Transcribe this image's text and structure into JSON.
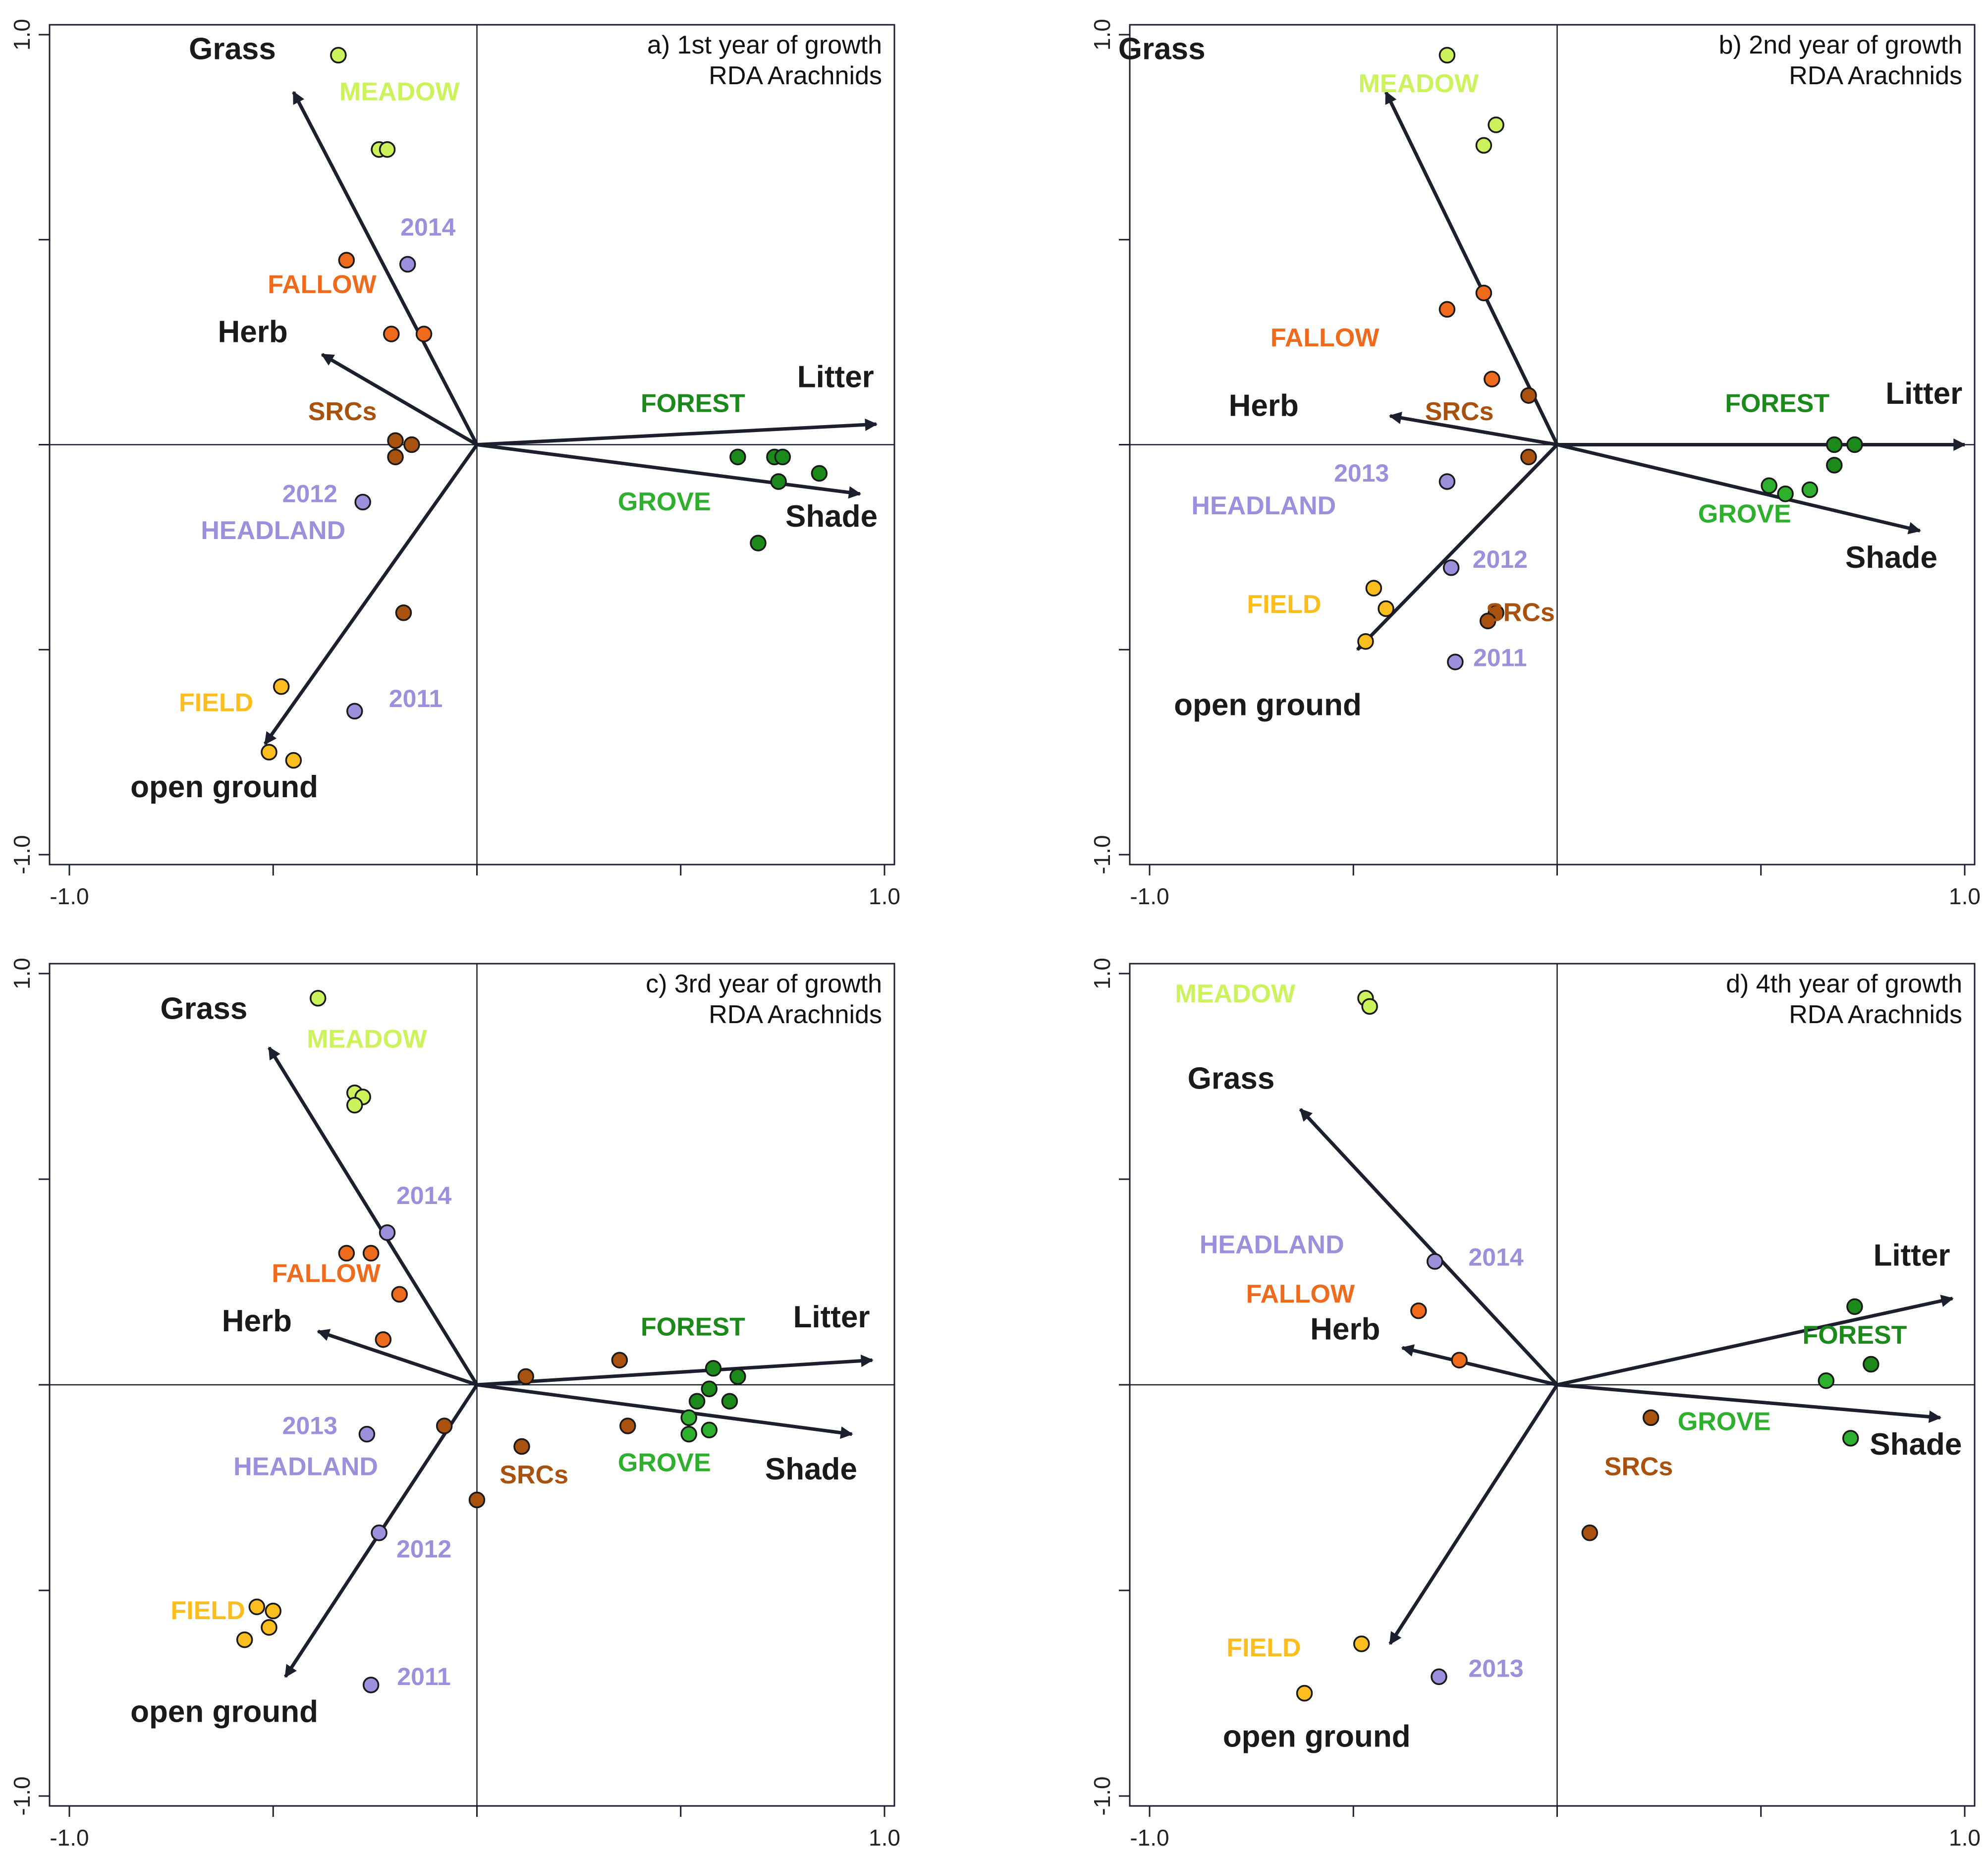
{
  "colors": {
    "meadow": "#ccf25c",
    "fallow": "#ee6a1c",
    "src": "#a9520f",
    "headland": "#9c8fdb",
    "field": "#fbbe1e",
    "forest": "#1b8a1b",
    "grove": "#2eb02e",
    "arrow": "#1c1f2e",
    "axis": "#1c1f2e"
  },
  "chart_data": [
    {
      "type": "scatter",
      "title": "a) 1st year of growth",
      "subtitle": "RDA Arachnids",
      "xlim": [
        -1.0,
        1.0
      ],
      "ylim": [
        -1.0,
        1.0
      ],
      "x_tick_labels": [
        "-1.0",
        "1.0"
      ],
      "y_tick_labels": [
        "1.0",
        "-1.0"
      ],
      "arrows": [
        {
          "name": "Grass",
          "x": -0.45,
          "y": 0.86,
          "lx": -0.6,
          "ly": 0.94
        },
        {
          "name": "Herb",
          "x": -0.38,
          "y": 0.22,
          "lx": -0.55,
          "ly": 0.25
        },
        {
          "name": "Litter",
          "x": 0.98,
          "y": 0.05,
          "lx": 0.88,
          "ly": 0.14
        },
        {
          "name": "Shade",
          "x": 0.94,
          "y": -0.12,
          "lx": 0.87,
          "ly": -0.2
        },
        {
          "name": "open ground",
          "x": -0.52,
          "y": -0.73,
          "lx": -0.62,
          "ly": -0.86
        }
      ],
      "series": [
        {
          "name": "MEADOW",
          "color_key": "meadow",
          "label_x": -0.19,
          "label_y": 0.84,
          "points": [
            [
              -0.34,
              0.95
            ],
            [
              -0.24,
              0.72
            ],
            [
              -0.22,
              0.72
            ]
          ]
        },
        {
          "name": "FALLOW",
          "color_key": "fallow",
          "label_x": -0.38,
          "label_y": 0.37,
          "points": [
            [
              -0.32,
              0.45
            ],
            [
              -0.21,
              0.27
            ],
            [
              -0.13,
              0.27
            ]
          ]
        },
        {
          "name": "SRCs",
          "color_key": "src",
          "label_x": -0.33,
          "label_y": 0.06,
          "points": [
            [
              -0.2,
              0.01
            ],
            [
              -0.2,
              -0.03
            ],
            [
              -0.16,
              0.0
            ]
          ]
        },
        {
          "name": "HEADLAND",
          "color_key": "headland",
          "label_x": -0.5,
          "label_y": -0.23,
          "points": [
            [
              -0.17,
              0.44
            ],
            [
              -0.28,
              -0.14
            ],
            [
              -0.3,
              -0.65
            ]
          ],
          "year_labels": [
            {
              "text": "2014",
              "x": -0.12,
              "y": 0.51
            },
            {
              "text": "2012",
              "x": -0.41,
              "y": -0.14
            },
            {
              "text": "2011",
              "x": -0.15,
              "y": -0.64
            }
          ]
        },
        {
          "name": "FIELD",
          "color_key": "field",
          "label_x": -0.64,
          "label_y": -0.65,
          "points": [
            [
              -0.48,
              -0.59
            ],
            [
              -0.51,
              -0.75
            ],
            [
              -0.45,
              -0.77
            ]
          ]
        },
        {
          "name": "SRCs",
          "color_key": "src",
          "show_label": false,
          "points": [
            [
              -0.18,
              -0.41
            ]
          ]
        },
        {
          "name": "FOREST",
          "color_key": "forest",
          "label_x": 0.53,
          "label_y": 0.08,
          "points": [
            [
              0.64,
              -0.03
            ],
            [
              0.73,
              -0.03
            ],
            [
              0.75,
              -0.03
            ],
            [
              0.74,
              -0.09
            ],
            [
              0.84,
              -0.07
            ],
            [
              0.69,
              -0.24
            ]
          ]
        },
        {
          "name": "GROVE",
          "color_key": "grove",
          "label_x": 0.46,
          "label_y": -0.16,
          "points": []
        }
      ]
    },
    {
      "type": "scatter",
      "title": "b) 2nd year of growth",
      "subtitle": "RDA Arachnids",
      "xlim": [
        -1.0,
        1.0
      ],
      "ylim": [
        -1.0,
        1.0
      ],
      "x_tick_labels": [
        "-1.0",
        "1.0"
      ],
      "y_tick_labels": [
        "1.0",
        "-1.0"
      ],
      "arrows": [
        {
          "name": "Grass",
          "x": -0.42,
          "y": 0.86,
          "lx": -0.97,
          "ly": 0.94
        },
        {
          "name": "Herb",
          "x": -0.41,
          "y": 0.07,
          "lx": -0.72,
          "ly": 0.07
        },
        {
          "name": "Litter",
          "x": 1.0,
          "y": 0.0,
          "lx": 0.9,
          "ly": 0.1
        },
        {
          "name": "Shade",
          "x": 0.89,
          "y": -0.21,
          "lx": 0.82,
          "ly": -0.3
        },
        {
          "name": "open ground",
          "x": -0.49,
          "y": -0.5,
          "lx": -0.71,
          "ly": -0.66
        }
      ],
      "series": [
        {
          "name": "MEADOW",
          "color_key": "meadow",
          "label_x": -0.34,
          "label_y": 0.86,
          "points": [
            [
              -0.27,
              0.95
            ],
            [
              -0.15,
              0.78
            ],
            [
              -0.18,
              0.73
            ]
          ]
        },
        {
          "name": "FALLOW",
          "color_key": "fallow",
          "label_x": -0.57,
          "label_y": 0.24,
          "points": [
            [
              -0.27,
              0.33
            ],
            [
              -0.18,
              0.37
            ],
            [
              -0.16,
              0.16
            ]
          ]
        },
        {
          "name": "SRCs",
          "color_key": "src",
          "label_x": -0.24,
          "label_y": 0.06,
          "points": [
            [
              -0.07,
              0.12
            ],
            [
              -0.07,
              -0.03
            ],
            [
              -0.15,
              -0.41
            ],
            [
              -0.17,
              -0.43
            ]
          ],
          "label_positions": [
            {
              "text": "SRCs",
              "x": -0.09,
              "y": -0.43
            }
          ]
        },
        {
          "name": "HEADLAND",
          "color_key": "headland",
          "label_x": -0.72,
          "label_y": -0.17,
          "points": [
            [
              -0.27,
              -0.09
            ],
            [
              -0.26,
              -0.3
            ],
            [
              -0.25,
              -0.53
            ]
          ],
          "year_labels": [
            {
              "text": "2013",
              "x": -0.48,
              "y": -0.09
            },
            {
              "text": "2012",
              "x": -0.14,
              "y": -0.3
            },
            {
              "text": "2011",
              "x": -0.14,
              "y": -0.54
            }
          ]
        },
        {
          "name": "FIELD",
          "color_key": "field",
          "label_x": -0.67,
          "label_y": -0.41,
          "points": [
            [
              -0.45,
              -0.35
            ],
            [
              -0.42,
              -0.4
            ],
            [
              -0.47,
              -0.48
            ]
          ]
        },
        {
          "name": "FOREST",
          "color_key": "forest",
          "label_x": 0.54,
          "label_y": 0.08,
          "points": [
            [
              0.68,
              0.0
            ],
            [
              0.73,
              0.0
            ],
            [
              0.68,
              -0.05
            ]
          ]
        },
        {
          "name": "GROVE",
          "color_key": "grove",
          "label_x": 0.46,
          "label_y": -0.19,
          "points": [
            [
              0.52,
              -0.1
            ],
            [
              0.56,
              -0.12
            ],
            [
              0.62,
              -0.11
            ]
          ]
        }
      ]
    },
    {
      "type": "scatter",
      "title": "c) 3rd year of growth",
      "subtitle": "RDA Arachnids",
      "xlim": [
        -1.0,
        1.0
      ],
      "ylim": [
        -1.0,
        1.0
      ],
      "x_tick_labels": [
        "-1.0",
        "1.0"
      ],
      "y_tick_labels": [
        "1.0",
        "-1.0"
      ],
      "arrows": [
        {
          "name": "Grass",
          "x": -0.51,
          "y": 0.82,
          "lx": -0.67,
          "ly": 0.89
        },
        {
          "name": "Herb",
          "x": -0.39,
          "y": 0.13,
          "lx": -0.54,
          "ly": 0.13
        },
        {
          "name": "Litter",
          "x": 0.97,
          "y": 0.06,
          "lx": 0.87,
          "ly": 0.14
        },
        {
          "name": "Shade",
          "x": 0.92,
          "y": -0.12,
          "lx": 0.82,
          "ly": -0.23
        },
        {
          "name": "open ground",
          "x": -0.47,
          "y": -0.71,
          "lx": -0.62,
          "ly": -0.82
        }
      ],
      "series": [
        {
          "name": "MEADOW",
          "color_key": "meadow",
          "label_x": -0.27,
          "label_y": 0.82,
          "points": [
            [
              -0.39,
              0.94
            ],
            [
              -0.3,
              0.71
            ],
            [
              -0.28,
              0.7
            ],
            [
              -0.3,
              0.68
            ]
          ]
        },
        {
          "name": "FALLOW",
          "color_key": "fallow",
          "label_x": -0.37,
          "label_y": 0.25,
          "points": [
            [
              -0.32,
              0.32
            ],
            [
              -0.26,
              0.32
            ],
            [
              -0.19,
              0.22
            ],
            [
              -0.23,
              0.11
            ]
          ]
        },
        {
          "name": "SRCs",
          "color_key": "src",
          "label_x": 0.14,
          "label_y": -0.24,
          "points": [
            [
              0.12,
              0.02
            ],
            [
              0.35,
              0.06
            ],
            [
              -0.08,
              -0.1
            ],
            [
              0.11,
              -0.15
            ],
            [
              0.37,
              -0.1
            ],
            [
              0.0,
              -0.28
            ]
          ]
        },
        {
          "name": "HEADLAND",
          "color_key": "headland",
          "label_x": -0.42,
          "label_y": -0.22,
          "points": [
            [
              -0.22,
              0.37
            ],
            [
              -0.27,
              -0.12
            ],
            [
              -0.24,
              -0.36
            ],
            [
              -0.26,
              -0.73
            ]
          ],
          "year_labels": [
            {
              "text": "2014",
              "x": -0.13,
              "y": 0.44
            },
            {
              "text": "2013",
              "x": -0.41,
              "y": -0.12
            },
            {
              "text": "2012",
              "x": -0.13,
              "y": -0.42
            },
            {
              "text": "2011",
              "x": -0.13,
              "y": -0.73
            }
          ]
        },
        {
          "name": "FIELD",
          "color_key": "field",
          "label_x": -0.66,
          "label_y": -0.57,
          "points": [
            [
              -0.54,
              -0.54
            ],
            [
              -0.5,
              -0.55
            ],
            [
              -0.51,
              -0.59
            ],
            [
              -0.57,
              -0.62
            ]
          ]
        },
        {
          "name": "FOREST",
          "color_key": "forest",
          "label_x": 0.53,
          "label_y": 0.12,
          "points": [
            [
              0.58,
              0.04
            ],
            [
              0.64,
              0.02
            ],
            [
              0.54,
              -0.04
            ],
            [
              0.57,
              -0.01
            ],
            [
              0.62,
              -0.04
            ]
          ]
        },
        {
          "name": "GROVE",
          "color_key": "grove",
          "label_x": 0.46,
          "label_y": -0.21,
          "points": [
            [
              0.52,
              -0.08
            ],
            [
              0.52,
              -0.12
            ],
            [
              0.57,
              -0.11
            ]
          ]
        }
      ]
    },
    {
      "type": "scatter",
      "title": "d) 4th year of growth",
      "subtitle": "RDA Arachnids",
      "xlim": [
        -1.0,
        1.0
      ],
      "ylim": [
        -1.0,
        1.0
      ],
      "x_tick_labels": [
        "-1.0",
        "1.0"
      ],
      "y_tick_labels": [
        "1.0",
        "-1.0"
      ],
      "arrows": [
        {
          "name": "Grass",
          "x": -0.63,
          "y": 0.67,
          "lx": -0.8,
          "ly": 0.72
        },
        {
          "name": "Herb",
          "x": -0.38,
          "y": 0.09,
          "lx": -0.52,
          "ly": 0.11
        },
        {
          "name": "Litter",
          "x": 0.97,
          "y": 0.21,
          "lx": 0.87,
          "ly": 0.29
        },
        {
          "name": "Shade",
          "x": 0.94,
          "y": -0.08,
          "lx": 0.88,
          "ly": -0.17
        },
        {
          "name": "open ground",
          "x": -0.41,
          "y": -0.63,
          "lx": -0.59,
          "ly": -0.88
        }
      ],
      "series": [
        {
          "name": "MEADOW",
          "color_key": "meadow",
          "label_x": -0.79,
          "label_y": 0.93,
          "points": [
            [
              -0.47,
              0.94
            ],
            [
              -0.46,
              0.92
            ]
          ]
        },
        {
          "name": "FALLOW",
          "color_key": "fallow",
          "label_x": -0.63,
          "label_y": 0.2,
          "points": [
            [
              -0.34,
              0.18
            ],
            [
              -0.24,
              0.06
            ]
          ]
        },
        {
          "name": "HEADLAND",
          "color_key": "headland",
          "label_x": -0.7,
          "label_y": 0.32,
          "points": [
            [
              -0.3,
              0.3
            ],
            [
              -0.29,
              -0.71
            ]
          ],
          "year_labels": [
            {
              "text": "2014",
              "x": -0.15,
              "y": 0.29
            },
            {
              "text": "2013",
              "x": -0.15,
              "y": -0.71
            }
          ]
        },
        {
          "name": "SRCs",
          "color_key": "src",
          "label_x": 0.2,
          "label_y": -0.22,
          "points": [
            [
              0.23,
              -0.08
            ],
            [
              0.08,
              -0.36
            ]
          ]
        },
        {
          "name": "FIELD",
          "color_key": "field",
          "label_x": -0.72,
          "label_y": -0.66,
          "points": [
            [
              -0.48,
              -0.63
            ],
            [
              -0.62,
              -0.75
            ]
          ]
        },
        {
          "name": "FOREST",
          "color_key": "forest",
          "label_x": 0.73,
          "label_y": 0.1,
          "points": [
            [
              0.73,
              0.19
            ],
            [
              0.77,
              0.05
            ]
          ]
        },
        {
          "name": "GROVE",
          "color_key": "grove",
          "label_x": 0.41,
          "label_y": -0.11,
          "points": [
            [
              0.66,
              0.01
            ],
            [
              0.72,
              -0.13
            ]
          ]
        }
      ]
    }
  ]
}
